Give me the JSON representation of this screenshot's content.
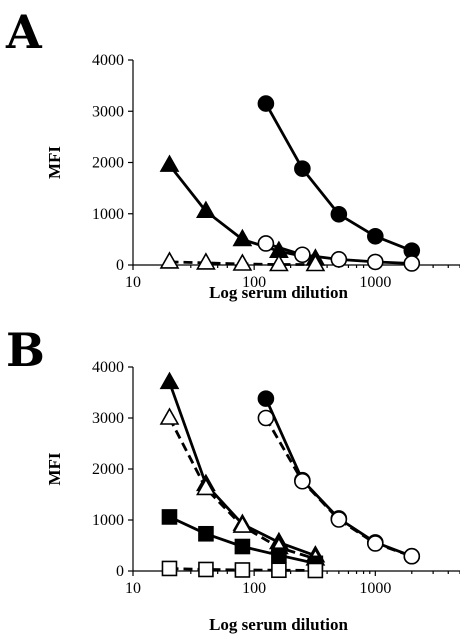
{
  "chart_data": [
    {
      "type": "line",
      "panel": "A",
      "xlabel": "Log serum dilution",
      "ylabel": "MFI",
      "xscale": "log",
      "xlim": [
        10,
        5000
      ],
      "ylim": [
        0,
        4000
      ],
      "xticks": [
        "10",
        "100",
        "1000"
      ],
      "yticks": [
        "0",
        "1000",
        "2000",
        "3000",
        "4000"
      ],
      "grid": false,
      "series": [
        {
          "marker": "filled-circle",
          "line": "solid",
          "x": [
            125,
            250,
            500,
            1000,
            2000
          ],
          "y": [
            3150,
            1880,
            990,
            560,
            280
          ]
        },
        {
          "marker": "open-circle",
          "line": "solid",
          "x": [
            125,
            250,
            500,
            1000,
            2000
          ],
          "y": [
            420,
            200,
            110,
            60,
            30
          ]
        },
        {
          "marker": "filled-triangle",
          "line": "solid",
          "x": [
            20,
            40,
            80,
            160,
            320
          ],
          "y": [
            1950,
            1050,
            500,
            270,
            120
          ]
        },
        {
          "marker": "open-triangle",
          "line": "dashed",
          "x": [
            20,
            40,
            80,
            160,
            320
          ],
          "y": [
            60,
            40,
            20,
            10,
            10
          ]
        }
      ]
    },
    {
      "type": "line",
      "panel": "B",
      "xlabel": "Log serum dilution",
      "ylabel": "MFI",
      "xscale": "log",
      "xlim": [
        10,
        5000
      ],
      "ylim": [
        0,
        4000
      ],
      "xticks": [
        "10",
        "100",
        "1000"
      ],
      "yticks": [
        "0",
        "1000",
        "2000",
        "3000",
        "4000"
      ],
      "grid": false,
      "series": [
        {
          "marker": "filled-circle",
          "line": "solid",
          "x": [
            125,
            250,
            500,
            1000,
            2000
          ],
          "y": [
            3380,
            1780,
            1030,
            560,
            290
          ]
        },
        {
          "marker": "open-circle",
          "line": "dashed",
          "x": [
            125,
            250,
            500,
            1000,
            2000
          ],
          "y": [
            3000,
            1760,
            1010,
            540,
            290
          ]
        },
        {
          "marker": "filled-triangle",
          "line": "solid",
          "x": [
            20,
            40,
            80,
            160,
            320
          ],
          "y": [
            3700,
            1700,
            920,
            560,
            300
          ]
        },
        {
          "marker": "open-triangle",
          "line": "dashed",
          "x": [
            20,
            40,
            80,
            160,
            320
          ],
          "y": [
            3000,
            1620,
            880,
            460,
            240
          ]
        },
        {
          "marker": "filled-square",
          "line": "solid",
          "x": [
            20,
            40,
            80,
            160,
            320
          ],
          "y": [
            1060,
            730,
            480,
            310,
            150
          ]
        },
        {
          "marker": "open-square",
          "line": "dashed",
          "x": [
            20,
            40,
            80,
            160,
            320
          ],
          "y": [
            50,
            30,
            20,
            15,
            10
          ]
        }
      ]
    }
  ]
}
